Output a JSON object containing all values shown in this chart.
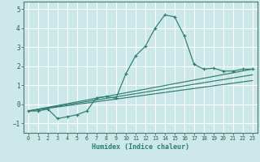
{
  "xlabel": "Humidex (Indice chaleur)",
  "bg_color": "#cce8e8",
  "grid_color": "#ffffff",
  "line_color": "#2e7d6e",
  "xlim": [
    -0.5,
    23.5
  ],
  "ylim": [
    -1.5,
    5.4
  ],
  "yticks": [
    -1,
    0,
    1,
    2,
    3,
    4,
    5
  ],
  "xticks": [
    0,
    1,
    2,
    3,
    4,
    5,
    6,
    7,
    8,
    9,
    10,
    11,
    12,
    13,
    14,
    15,
    16,
    17,
    18,
    19,
    20,
    21,
    22,
    23
  ],
  "series1_x": [
    0,
    1,
    2,
    3,
    4,
    5,
    6,
    7,
    8,
    9,
    10,
    11,
    12,
    13,
    14,
    15,
    16,
    17,
    18,
    19,
    20,
    21,
    22,
    23
  ],
  "series1_y": [
    -0.35,
    -0.35,
    -0.25,
    -0.75,
    -0.65,
    -0.55,
    -0.35,
    0.35,
    0.4,
    0.32,
    1.6,
    2.55,
    3.05,
    4.0,
    4.7,
    4.6,
    3.6,
    2.1,
    1.85,
    1.9,
    1.75,
    1.75,
    1.85,
    1.85
  ],
  "series2_x": [
    0,
    23
  ],
  "series2_y": [
    -0.35,
    1.85
  ],
  "series3_x": [
    0,
    23
  ],
  "series3_y": [
    -0.35,
    1.55
  ],
  "series4_x": [
    0,
    23
  ],
  "series4_y": [
    -0.35,
    1.25
  ]
}
